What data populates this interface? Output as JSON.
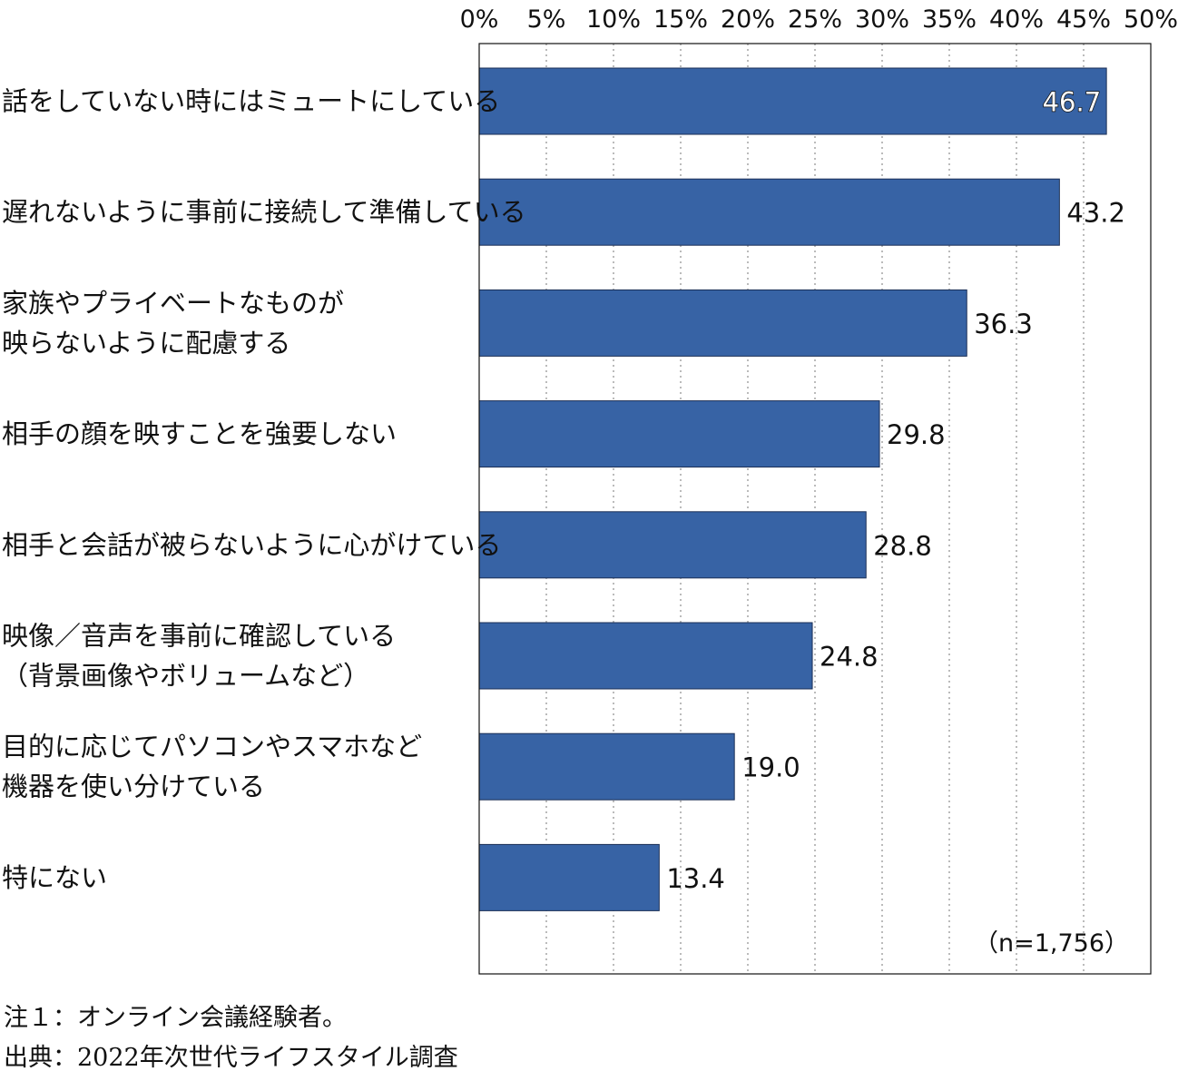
{
  "chart_data": {
    "type": "bar",
    "orientation": "horizontal",
    "categories": [
      [
        "話をしていない時にはミュートにしている"
      ],
      [
        "遅れないように事前に接続して準備している"
      ],
      [
        "家族やプライベートなものが",
        "映らないように配慮する"
      ],
      [
        "相手の顔を映すことを強要しない"
      ],
      [
        "相手と会話が被らないように心がけている"
      ],
      [
        "映像／音声を事前に確認している",
        "（背景画像やボリュームなど）"
      ],
      [
        "目的に応じてパソコンやスマホなど",
        "機器を使い分けている"
      ],
      [
        "特にない"
      ]
    ],
    "values": [
      46.7,
      43.2,
      36.3,
      29.8,
      28.8,
      24.8,
      19.0,
      13.4
    ],
    "value_labels": [
      "46.7",
      "43.2",
      "36.3",
      "29.8",
      "28.8",
      "24.8",
      "19.0",
      "13.4"
    ],
    "xlim": [
      0,
      50
    ],
    "xticks": [
      "0%",
      "5%",
      "10%",
      "15%",
      "20%",
      "25%",
      "30%",
      "35%",
      "40%",
      "45%",
      "50%"
    ],
    "xtick_values": [
      0,
      5,
      10,
      15,
      20,
      25,
      30,
      35,
      40,
      45,
      50
    ],
    "grid": "vertical dotted",
    "bar_color": "#3763A5",
    "annotation": "（n=1,756）"
  },
  "notes": {
    "note1": "注１：オンライン会議経験者。",
    "source": "出典：2022年次世代ライフスタイル調査"
  }
}
